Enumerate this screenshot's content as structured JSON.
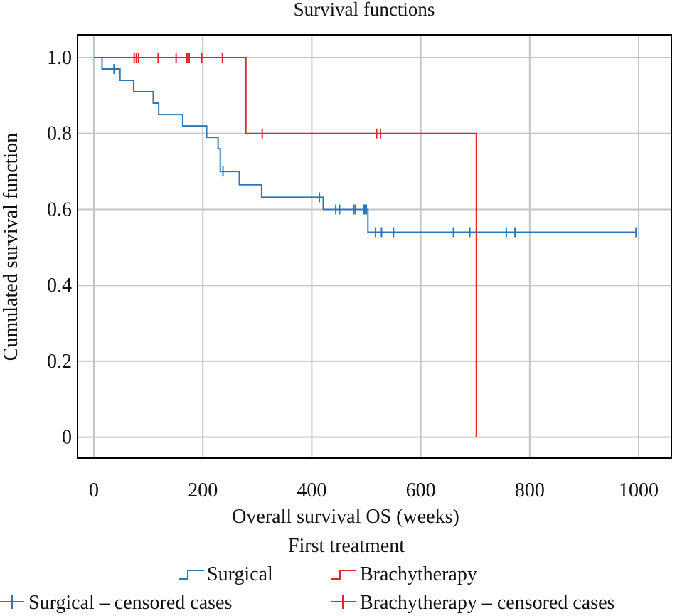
{
  "chart_data": {
    "type": "line",
    "subtype": "kaplan-meier",
    "title": "Survival functions",
    "xlabel": "Overall survival OS (weeks)",
    "ylabel": "Cumulated survival function",
    "xlim": [
      -30,
      1060
    ],
    "ylim": [
      -0.055,
      1.06
    ],
    "xticks": [
      0,
      200,
      400,
      600,
      800,
      1000
    ],
    "xtick_labels": [
      "0",
      "200",
      "400",
      "600",
      "800",
      "1000"
    ],
    "yticks": [
      0,
      0.2,
      0.4,
      0.6,
      0.8,
      1.0
    ],
    "ytick_labels": [
      "0",
      "0.2",
      "0.4",
      "0.6",
      "0.8",
      "1.0"
    ],
    "grid": true,
    "legend": {
      "title": "First treatment",
      "placement": "bottom",
      "entries": [
        {
          "label": "Surgical",
          "marker": "step",
          "series": "surgical"
        },
        {
          "label": "Brachytherapy",
          "marker": "step",
          "series": "brachy"
        },
        {
          "label": "Surgical – censored cases",
          "marker": "plus",
          "series": "surgical"
        },
        {
          "label": "Brachytherapy – censored cases",
          "marker": "plus",
          "series": "brachy"
        }
      ]
    },
    "series": [
      {
        "name": "Surgical",
        "key": "surgical",
        "color": "#2e75b6",
        "steps": [
          [
            0,
            1.0
          ],
          [
            15,
            0.97
          ],
          [
            48,
            0.94
          ],
          [
            73,
            0.91
          ],
          [
            109,
            0.88
          ],
          [
            119,
            0.85
          ],
          [
            163,
            0.82
          ],
          [
            207,
            0.79
          ],
          [
            228,
            0.76
          ],
          [
            232,
            0.7
          ],
          [
            267,
            0.665
          ],
          [
            308,
            0.632
          ],
          [
            421,
            0.6
          ],
          [
            503,
            0.54
          ]
        ],
        "end_x": 995,
        "censored": [
          [
            37,
            0.97
          ],
          [
            237,
            0.7
          ],
          [
            414,
            0.632
          ],
          [
            444,
            0.6
          ],
          [
            451,
            0.6
          ],
          [
            477,
            0.6
          ],
          [
            480,
            0.6
          ],
          [
            496,
            0.6
          ],
          [
            498,
            0.6
          ],
          [
            500,
            0.6
          ],
          [
            517,
            0.54
          ],
          [
            528,
            0.54
          ],
          [
            550,
            0.54
          ],
          [
            660,
            0.54
          ],
          [
            690,
            0.54
          ],
          [
            757,
            0.54
          ],
          [
            773,
            0.54
          ],
          [
            995,
            0.54
          ]
        ]
      },
      {
        "name": "Brachytherapy",
        "key": "brachy",
        "color": "#e0262b",
        "steps": [
          [
            0,
            1.0
          ],
          [
            279,
            0.8
          ],
          [
            702,
            0.0
          ]
        ],
        "end_x": 702,
        "censored": [
          [
            74,
            1.0
          ],
          [
            78,
            1.0
          ],
          [
            82,
            1.0
          ],
          [
            118,
            1.0
          ],
          [
            151,
            1.0
          ],
          [
            171,
            1.0
          ],
          [
            175,
            1.0
          ],
          [
            198,
            1.0
          ],
          [
            236,
            1.0
          ],
          [
            309,
            0.8
          ],
          [
            519,
            0.8
          ],
          [
            526,
            0.8
          ]
        ]
      }
    ]
  }
}
